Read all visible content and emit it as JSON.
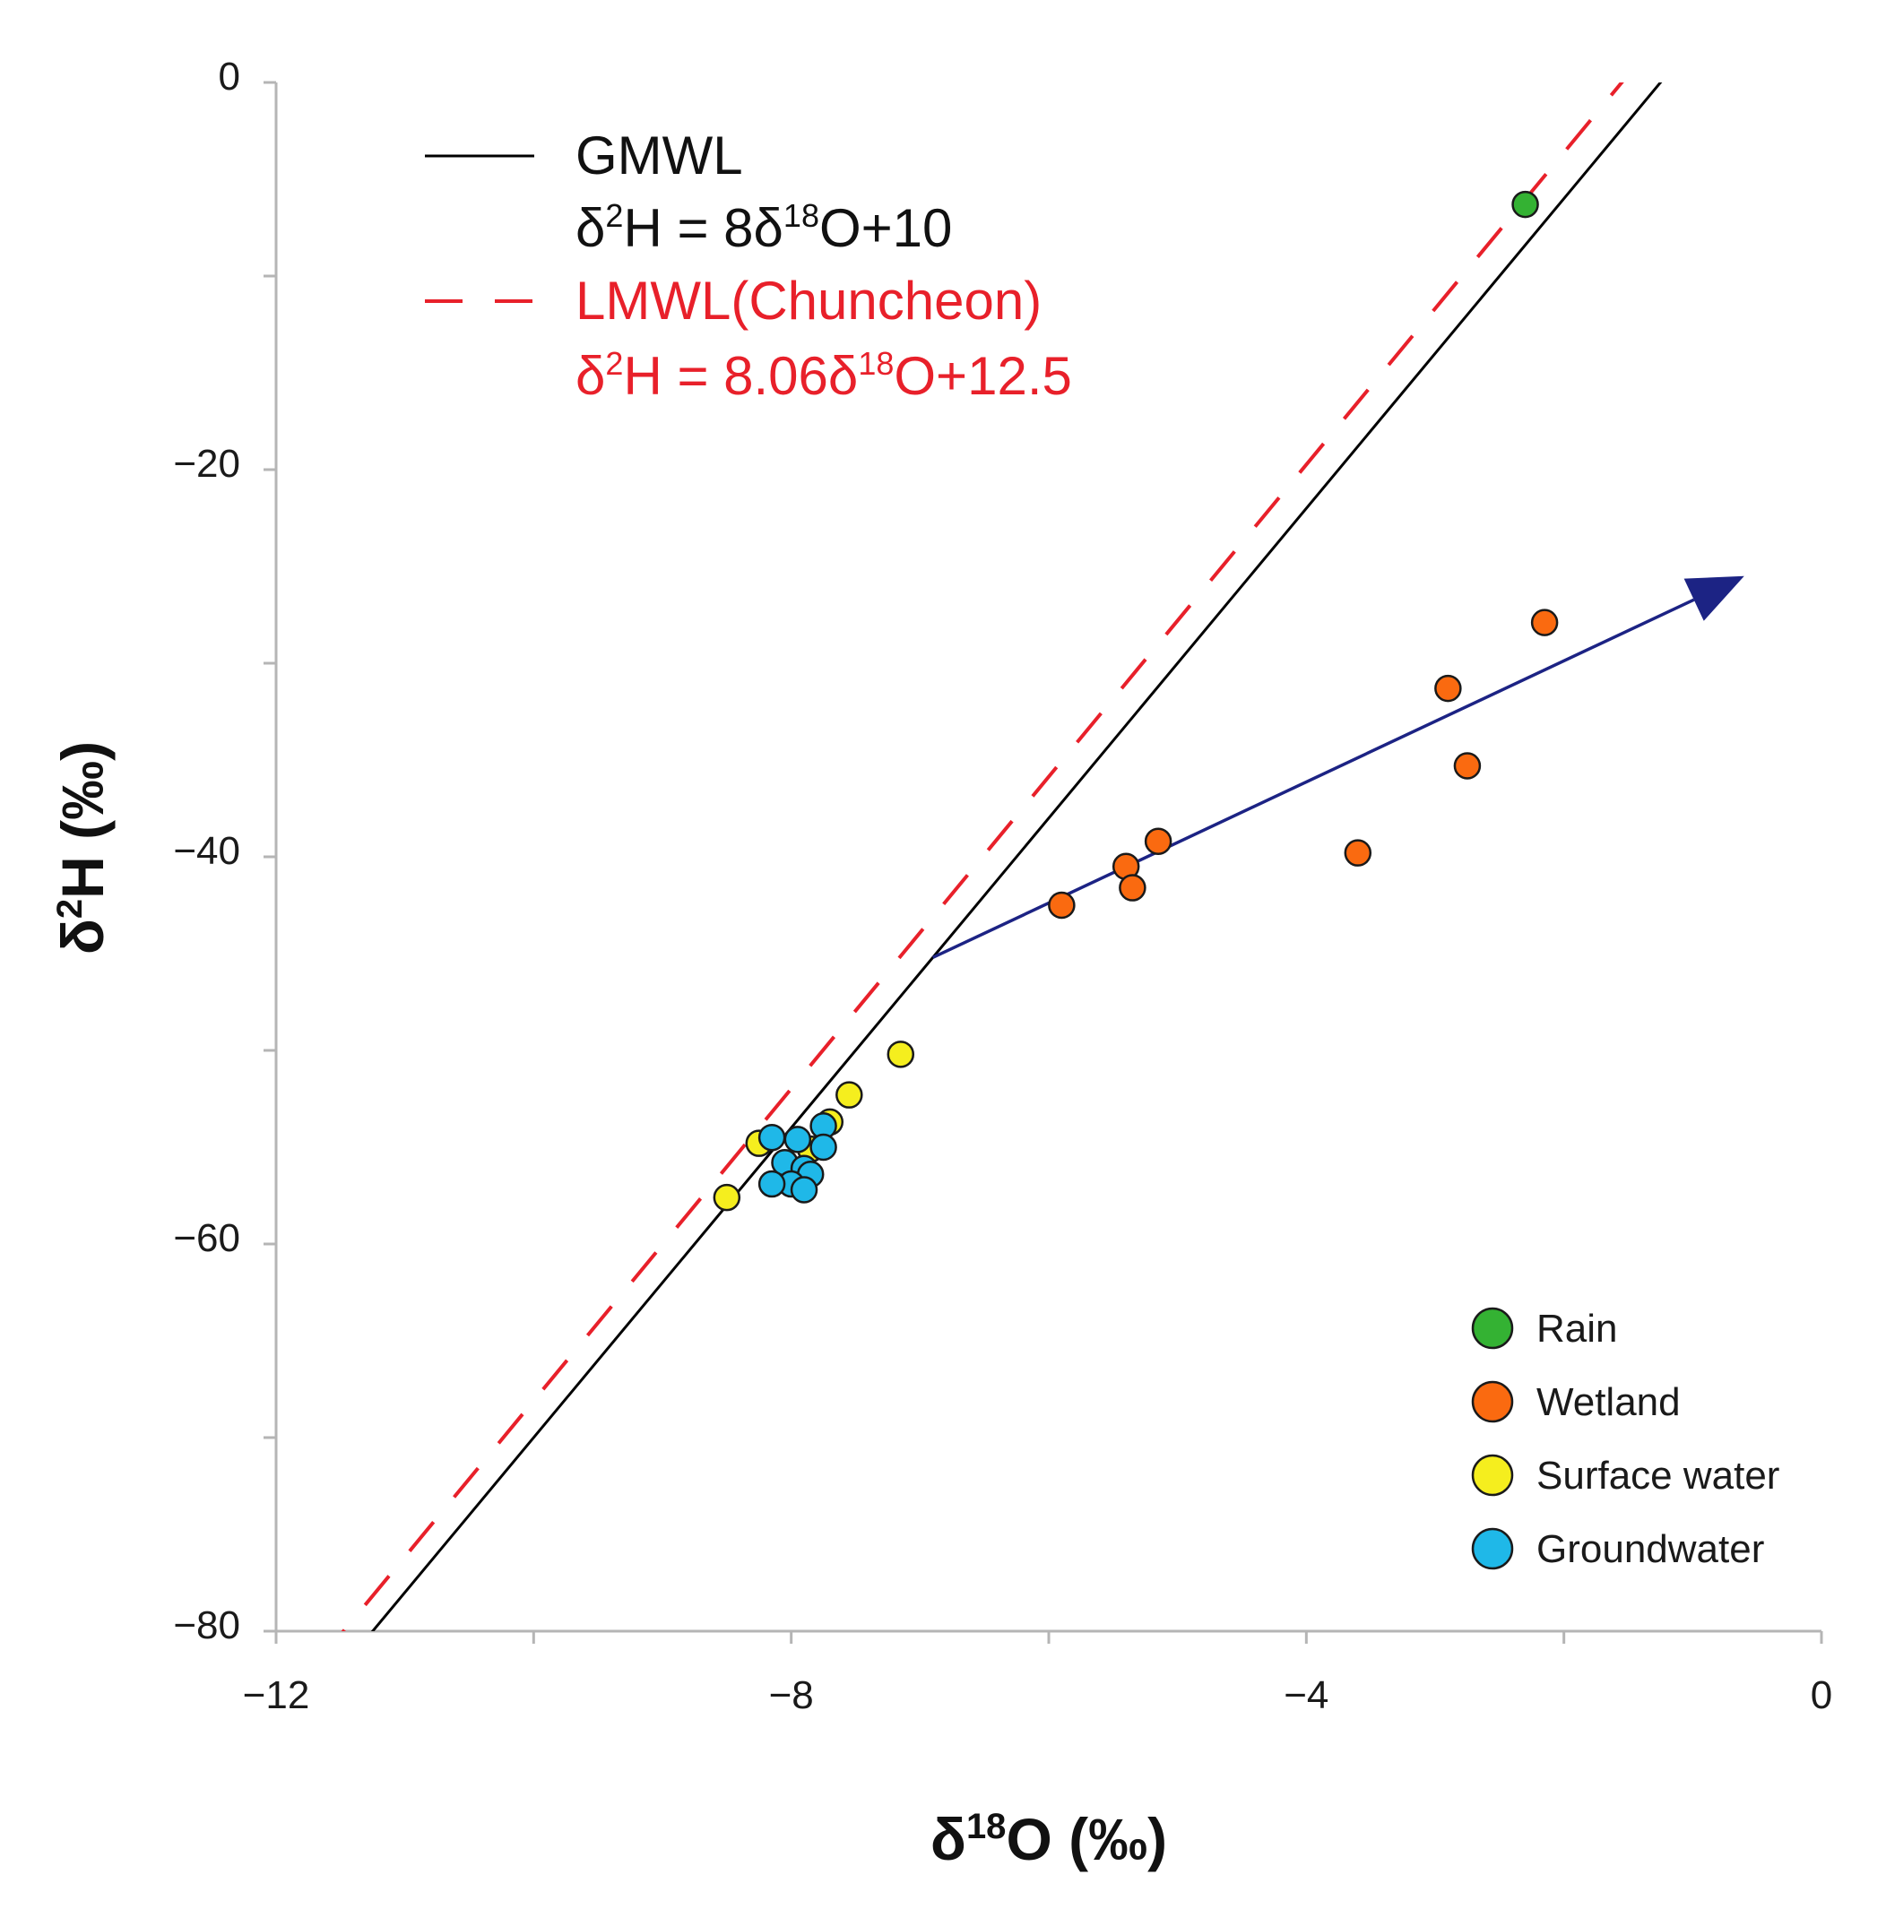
{
  "chart_data": {
    "type": "scatter",
    "title": "",
    "xlabel": {
      "base": "δ",
      "sup": "18",
      "rest": "O (‰)"
    },
    "ylabel": {
      "base": "δ",
      "sup": "2",
      "rest": "H (‰)"
    },
    "xlim": [
      -12,
      0
    ],
    "ylim": [
      -80,
      0
    ],
    "x_ticks": [
      -12,
      -8,
      -4,
      0
    ],
    "x_tick_labels": [
      "−12",
      "−8",
      "−4",
      "0"
    ],
    "x_minor_ticks": [
      -10,
      -6,
      -2
    ],
    "y_ticks": [
      0,
      -20,
      -40,
      -60,
      -80
    ],
    "y_tick_labels": [
      "0",
      "−20",
      "−40",
      "−60",
      "−80"
    ],
    "y_minor_ticks": [
      -10,
      -30,
      -50,
      -70
    ],
    "grid": false,
    "lines": [
      {
        "name": "GMWL",
        "equation": "δ2H = 8δ18O+10",
        "slope": 8,
        "intercept": 10,
        "color": "#000000",
        "dash": "solid",
        "legend_title": "GMWL",
        "legend_eq": {
          "a": "δ",
          "b": "2",
          "c": "H = 8δ",
          "d": "18",
          "e": "O+10"
        }
      },
      {
        "name": "LMWL(Chuncheon)",
        "equation": "δ2H = 8.06δ18O+12.5",
        "slope": 8.06,
        "intercept": 12.5,
        "color": "#e8202a",
        "dash": "dashed",
        "legend_title": "LMWL(Chuncheon)",
        "legend_eq": {
          "a": "δ",
          "b": "2",
          "c": "H = 8.06δ",
          "d": "18",
          "e": "O+12.5"
        }
      }
    ],
    "arrow": {
      "from": [
        -6.9,
        -45.2
      ],
      "to": [
        -0.6,
        -25.5
      ],
      "color": "#1c2384"
    },
    "series": [
      {
        "name": "Rain",
        "color": "#34b233",
        "points": [
          [
            -2.3,
            -6.3
          ]
        ]
      },
      {
        "name": "Wetland",
        "color": "#fa6a10",
        "points": [
          [
            -5.9,
            -42.5
          ],
          [
            -5.4,
            -40.5
          ],
          [
            -5.35,
            -41.6
          ],
          [
            -5.15,
            -39.2
          ],
          [
            -3.6,
            -39.8
          ],
          [
            -2.9,
            -31.3
          ],
          [
            -2.75,
            -35.3
          ],
          [
            -2.15,
            -27.9
          ]
        ]
      },
      {
        "name": "Surface water",
        "color": "#f5ee1e",
        "points": [
          [
            -7.15,
            -50.2
          ],
          [
            -7.55,
            -52.3
          ],
          [
            -7.7,
            -53.7
          ],
          [
            -8.25,
            -54.8
          ],
          [
            -7.85,
            -55.1
          ],
          [
            -8.5,
            -57.6
          ]
        ]
      },
      {
        "name": "Groundwater",
        "color": "#1fb8e8",
        "points": [
          [
            -8.15,
            -54.5
          ],
          [
            -7.95,
            -54.6
          ],
          [
            -7.75,
            -53.9
          ],
          [
            -7.75,
            -55.0
          ],
          [
            -8.05,
            -55.8
          ],
          [
            -7.9,
            -56.1
          ],
          [
            -7.85,
            -56.4
          ],
          [
            -8.0,
            -56.9
          ],
          [
            -8.15,
            -56.9
          ],
          [
            -7.9,
            -57.2
          ]
        ]
      }
    ],
    "legend": {
      "position": "bottom-right",
      "entries": [
        "Rain",
        "Wetland",
        "Surface water",
        "Groundwater"
      ]
    }
  }
}
